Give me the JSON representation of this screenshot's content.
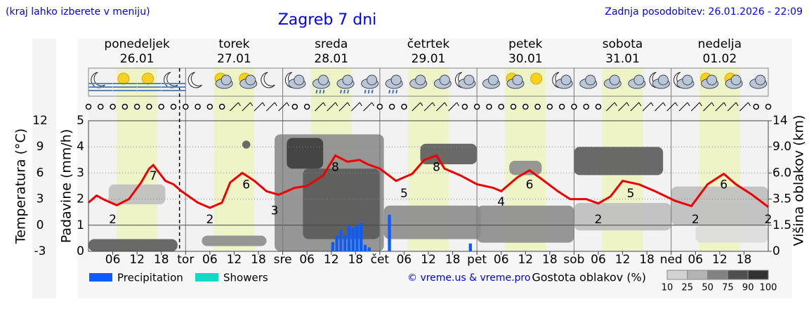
{
  "chart_data": {
    "type": "meteogram",
    "note": "(kraj lahko izberete v meniju)",
    "title": "Zagreb 7 dni",
    "updated": "Zadnja posodobitev: 26.01.2026 - 22:09",
    "days": [
      {
        "name": "ponedeljek",
        "date": "26.01",
        "color": "#000000"
      },
      {
        "name": "torek",
        "date": "27.01",
        "color": "#000000"
      },
      {
        "name": "sreda",
        "date": "28.01",
        "color": "#000000"
      },
      {
        "name": "četrtek",
        "date": "29.01",
        "color": "#000000"
      },
      {
        "name": "petek",
        "date": "30.01",
        "color": "#000000"
      },
      {
        "name": "sobota",
        "date": "31.01",
        "color": "#e00000"
      },
      {
        "name": "nedelja",
        "date": "01.02",
        "color": "#e00000"
      }
    ],
    "xlim": [
      0,
      168
    ],
    "xticks": [
      {
        "value": 6,
        "label": "06"
      },
      {
        "value": 12,
        "label": "12"
      },
      {
        "value": 18,
        "label": "18"
      },
      {
        "value": 24,
        "label": "tor"
      },
      {
        "value": 30,
        "label": "06"
      },
      {
        "value": 36,
        "label": "12"
      },
      {
        "value": 42,
        "label": "18"
      },
      {
        "value": 48,
        "label": "sre"
      },
      {
        "value": 54,
        "label": "06"
      },
      {
        "value": 60,
        "label": "12"
      },
      {
        "value": 66,
        "label": "18"
      },
      {
        "value": 72,
        "label": "čet"
      },
      {
        "value": 78,
        "label": "06"
      },
      {
        "value": 84,
        "label": "12"
      },
      {
        "value": 90,
        "label": "18"
      },
      {
        "value": 96,
        "label": "pet"
      },
      {
        "value": 102,
        "label": "06"
      },
      {
        "value": 108,
        "label": "12"
      },
      {
        "value": 114,
        "label": "18"
      },
      {
        "value": 120,
        "label": "sob"
      },
      {
        "value": 126,
        "label": "06"
      },
      {
        "value": 132,
        "label": "12"
      },
      {
        "value": 138,
        "label": "18"
      },
      {
        "value": 144,
        "label": "ned"
      },
      {
        "value": 150,
        "label": "06"
      },
      {
        "value": 156,
        "label": "12"
      },
      {
        "value": 162,
        "label": "18"
      }
    ],
    "now": 22.5,
    "ylabel": "Padavine (mm/h)",
    "ylim": [
      0,
      5
    ],
    "yticks": [
      0,
      1,
      2,
      3,
      4,
      5
    ],
    "y2label": "Višina oblakov (km)",
    "y2lim": [
      0,
      14
    ],
    "y2ticks": [
      0,
      1.5,
      3.5,
      {
        "value": 6,
        "label": "6.0"
      },
      {
        "value": 9,
        "label": "9.0"
      },
      14
    ],
    "temperature": {
      "label": "Temperatura (°C)",
      "color": "#ee0000",
      "lim": [
        -3,
        12
      ],
      "ticks": [
        12,
        9,
        6,
        3,
        0,
        -3
      ],
      "x": [
        0,
        2,
        4,
        7,
        10,
        13,
        15,
        16,
        19,
        21,
        23,
        27,
        30,
        33,
        35,
        38,
        41,
        44,
        47,
        51,
        54,
        58,
        61,
        64,
        67,
        69,
        72,
        76,
        80,
        83,
        86,
        88,
        92,
        96,
        100,
        102,
        106,
        109,
        112,
        116,
        119,
        123,
        126,
        129,
        132,
        136,
        140,
        145,
        149,
        153,
        157,
        160,
        164,
        168
      ],
      "values": [
        2.6,
        3.4,
        2.9,
        2.3,
        3.0,
        4.9,
        6.5,
        6.9,
        5.1,
        4.7,
        3.9,
        2.6,
        2.0,
        2.6,
        4.9,
        6.0,
        5.1,
        3.9,
        3.5,
        4.3,
        4.5,
        5.7,
        8.0,
        7.3,
        7.5,
        7.0,
        6.5,
        5.1,
        5.9,
        7.5,
        8.0,
        6.5,
        5.7,
        4.7,
        4.3,
        3.9,
        5.5,
        6.3,
        5.3,
        3.9,
        3.0,
        3.0,
        2.5,
        3.3,
        5.1,
        4.7,
        3.9,
        2.8,
        2.2,
        4.7,
        5.9,
        4.7,
        3.5,
        2.1
      ],
      "extremes": {
        "x": [
          6,
          16,
          30,
          39,
          46,
          61,
          78,
          86,
          102,
          109,
          126,
          134,
          150,
          157,
          168
        ],
        "values": [
          2,
          7,
          2,
          6,
          3,
          8,
          5,
          8,
          4,
          6,
          2,
          5,
          2,
          6,
          2
        ]
      }
    },
    "series": [
      {
        "name": "Precipitation",
        "color": "#0a5cff",
        "x": [
          60,
          61,
          62,
          63,
          64,
          65,
          66,
          67,
          68,
          69,
          74,
          94
        ],
        "values": [
          0.35,
          0.6,
          0.8,
          0.6,
          1.0,
          0.9,
          1.0,
          1.1,
          0.25,
          0.15,
          1.4,
          0.3
        ]
      },
      {
        "name": "Showers",
        "color": "#14d9c5",
        "x": [],
        "values": []
      }
    ],
    "clouds": {
      "label": "Gostota oblakov (%)",
      "scale": [
        10,
        25,
        50,
        75,
        90,
        100
      ],
      "patches": [
        {
          "from": 150,
          "to": 168,
          "bottom": 0.5,
          "top": 1.5,
          "density": 10
        },
        {
          "from": 5,
          "to": 19,
          "bottom": 3.1,
          "top": 4.9,
          "density": 25
        },
        {
          "from": 120,
          "to": 144,
          "bottom": 1.2,
          "top": 3.2,
          "density": 25
        },
        {
          "from": 144,
          "to": 168,
          "bottom": 1.5,
          "top": 4.7,
          "density": 25
        },
        {
          "from": 28,
          "to": 44,
          "bottom": 0.3,
          "top": 0.9,
          "density": 50
        },
        {
          "from": 46,
          "to": 73,
          "bottom": 0,
          "top": 11.4,
          "density": 50
        },
        {
          "from": 73,
          "to": 97,
          "bottom": 0.7,
          "top": 3.0,
          "density": 50
        },
        {
          "from": 96,
          "to": 120,
          "bottom": 0.5,
          "top": 3.0,
          "density": 50
        },
        {
          "from": 104,
          "to": 112,
          "bottom": 5.8,
          "top": 7.4,
          "density": 50
        },
        {
          "from": 0,
          "to": 22,
          "bottom": 0,
          "top": 0.7,
          "density": 75
        },
        {
          "from": 38,
          "to": 40,
          "bottom": 8.8,
          "top": 10.2,
          "density": 75
        },
        {
          "from": 53,
          "to": 72,
          "bottom": 0.7,
          "top": 6.5,
          "density": 75
        },
        {
          "from": 82,
          "to": 96,
          "bottom": 7.0,
          "top": 9.6,
          "density": 75
        },
        {
          "from": 120,
          "to": 142,
          "bottom": 5.8,
          "top": 9.0,
          "density": 75
        },
        {
          "from": 49,
          "to": 58,
          "bottom": 6.5,
          "top": 10.7,
          "density": 90
        }
      ]
    },
    "copyright": "© vreme.us & vreme.pro"
  }
}
